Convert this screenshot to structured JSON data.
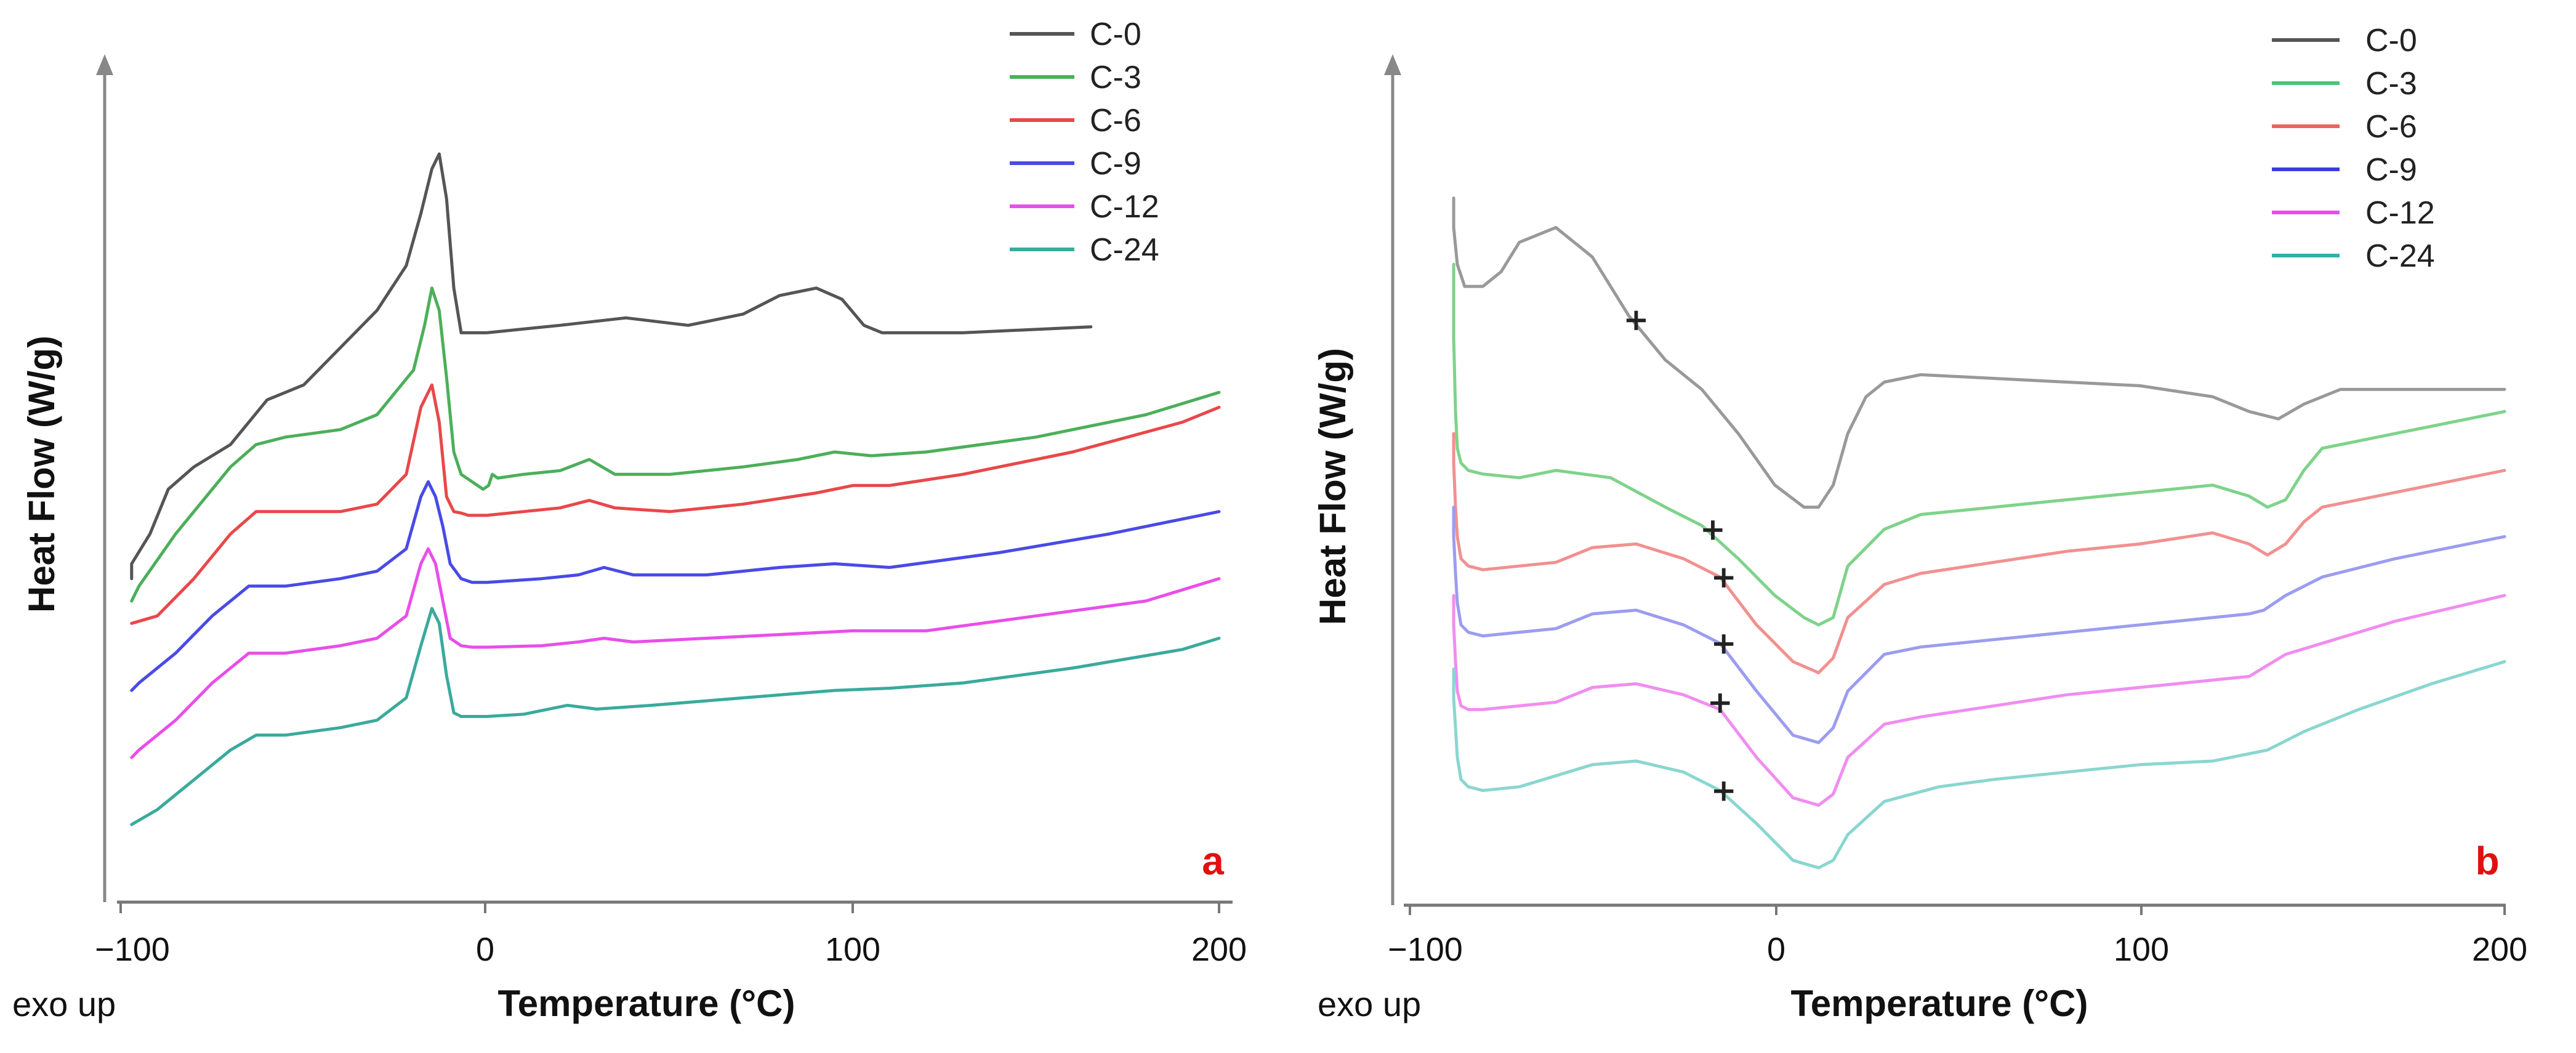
{
  "chart_data": [
    {
      "type": "line",
      "panel_label": "a",
      "xlabel": "Temperature (°C)",
      "ylabel": "Heat Flow (W/g)",
      "y_note": "exo up",
      "xlim": [
        -100,
        200
      ],
      "xticks": [
        -100,
        0,
        100,
        200
      ],
      "x_tick_labels": [
        "−100",
        "0",
        "100",
        "200"
      ],
      "ylim": [
        0,
        100
      ],
      "legend": [
        "C-0",
        "C-3",
        "C-6",
        "C-9",
        "C-12",
        "C-24"
      ],
      "legend_position": "top-right",
      "series": [
        {
          "name": "C-0",
          "color": "#555555",
          "x": [
            -97,
            -97,
            -92,
            -87,
            -80,
            -70,
            -60,
            -50,
            -40,
            -30,
            -22,
            -18,
            -15,
            -13,
            -11,
            -9,
            -7,
            0,
            20,
            38,
            55,
            70,
            80,
            90,
            97,
            103,
            108,
            130,
            165
          ],
          "y": [
            43,
            45,
            49,
            55,
            58,
            61,
            67,
            69,
            74,
            79,
            85,
            92,
            98,
            100,
            94,
            82,
            76,
            76,
            77,
            78,
            77,
            78.5,
            81,
            82,
            80.5,
            77,
            76,
            76,
            76.8
          ]
        },
        {
          "name": "C-3",
          "color": "#4caf5a",
          "x": [
            -97,
            -95,
            -85,
            -75,
            -70,
            -63,
            -55,
            -40,
            -30,
            -20,
            -17,
            -15,
            -13,
            -11,
            -9,
            -7,
            -4,
            -1,
            0.5,
            1.5,
            3,
            10,
            20,
            28,
            35,
            50,
            70,
            85,
            95,
            105,
            120,
            150,
            180,
            200
          ],
          "y": [
            40,
            42,
            49,
            55,
            58,
            61,
            62,
            63,
            65,
            71,
            77,
            82,
            79,
            70,
            60,
            57,
            56,
            55,
            55.5,
            57,
            56.5,
            57,
            57.5,
            59,
            57,
            57,
            58,
            59,
            60,
            59.5,
            60,
            62,
            65,
            68
          ]
        },
        {
          "name": "C-6",
          "color": "#e8484a",
          "x": [
            -97,
            -90,
            -80,
            -70,
            -63,
            -55,
            -40,
            -30,
            -22,
            -18,
            -15,
            -13,
            -11,
            -9,
            -7,
            -5,
            0,
            10,
            20,
            28,
            35,
            50,
            70,
            90,
            100,
            110,
            130,
            160,
            190,
            200
          ],
          "y": [
            37,
            38,
            43,
            49,
            52,
            52,
            52,
            53,
            57,
            66,
            69,
            64,
            54,
            52,
            51.8,
            51.5,
            51.5,
            52,
            52.5,
            53.5,
            52.5,
            52,
            53,
            54.5,
            55.5,
            55.5,
            57,
            60,
            64,
            66
          ]
        },
        {
          "name": "C-9",
          "color": "#4a4ae6",
          "x": [
            -97,
            -95,
            -85,
            -75,
            -65,
            -55,
            -40,
            -30,
            -22,
            -18,
            -16,
            -14,
            -12,
            -10,
            -7,
            -4,
            0,
            15,
            25,
            32,
            40,
            60,
            80,
            95,
            110,
            140,
            170,
            200
          ],
          "y": [
            28,
            29,
            33,
            38,
            42,
            42,
            43,
            44,
            47,
            54,
            56,
            54,
            50,
            45,
            43,
            42.5,
            42.5,
            43,
            43.5,
            44.5,
            43.5,
            43.5,
            44.5,
            45,
            44.5,
            46.5,
            49,
            52
          ]
        },
        {
          "name": "C-12",
          "color": "#e94ee9",
          "x": [
            -97,
            -95,
            -85,
            -75,
            -65,
            -55,
            -40,
            -30,
            -22,
            -18,
            -16,
            -14,
            -12,
            -10,
            -7,
            -4,
            0,
            15,
            25,
            32,
            40,
            60,
            80,
            100,
            120,
            150,
            180,
            200
          ],
          "y": [
            19,
            20,
            24,
            29,
            33,
            33,
            34,
            35,
            38,
            45,
            47,
            45,
            40,
            35,
            34,
            33.8,
            33.8,
            34,
            34.5,
            35,
            34.5,
            35,
            35.5,
            36,
            36,
            38,
            40,
            43
          ]
        },
        {
          "name": "C-24",
          "color": "#3aaa9c",
          "x": [
            -97,
            -90,
            -80,
            -70,
            -63,
            -55,
            -40,
            -30,
            -22,
            -18,
            -15,
            -13,
            -11,
            -9,
            -7,
            -4,
            0,
            10,
            22,
            30,
            45,
            70,
            95,
            110,
            130,
            160,
            190,
            200
          ],
          "y": [
            10,
            12,
            16,
            20,
            22,
            22,
            23,
            24,
            27,
            34,
            39,
            37,
            30,
            25,
            24.5,
            24.5,
            24.5,
            24.8,
            26,
            25.5,
            26,
            27,
            28,
            28.3,
            29,
            31,
            33.5,
            35
          ]
        }
      ]
    },
    {
      "type": "line",
      "panel_label": "b",
      "xlabel": "Temperature (°C)",
      "ylabel": "Heat Flow (W/g)",
      "y_note": "exo up",
      "xlim": [
        -100,
        200
      ],
      "xticks": [
        -100,
        0,
        100,
        200
      ],
      "x_tick_labels": [
        "−100",
        "0",
        "100",
        "200"
      ],
      "ylim": [
        0,
        100
      ],
      "legend": [
        "C-0",
        "C-3",
        "C-6",
        "C-9",
        "C-12",
        "C-24"
      ],
      "legend_position": "top-right",
      "series": [
        {
          "name": "C-0",
          "color": "#999999",
          "x": [
            -88,
            -88,
            -87,
            -85,
            -80,
            -75,
            -70,
            -60,
            -50,
            -40,
            -30,
            -20,
            -10,
            0,
            8,
            12,
            16,
            20,
            25,
            30,
            40,
            60,
            80,
            100,
            120,
            130,
            138,
            145,
            155,
            170,
            200
          ],
          "y": [
            94,
            90,
            85,
            82,
            82,
            84,
            88,
            90,
            86,
            78,
            72,
            68,
            62,
            55,
            52,
            52,
            55,
            62,
            67,
            69,
            70,
            69.5,
            69,
            68.5,
            67,
            65,
            64,
            66,
            68,
            68,
            68
          ]
        },
        {
          "name": "C-3",
          "color": "#7ed38a",
          "x": [
            -88,
            -88,
            -87.5,
            -87,
            -86,
            -84,
            -80,
            -70,
            -60,
            -45,
            -30,
            -20,
            -10,
            0,
            8,
            12,
            16,
            20,
            30,
            40,
            60,
            80,
            100,
            120,
            130,
            135,
            140,
            145,
            150,
            170,
            200
          ],
          "y": [
            85,
            75,
            65,
            60,
            58,
            57,
            56.5,
            56,
            57,
            56,
            52,
            49.5,
            45,
            40,
            37,
            36,
            37,
            44,
            49,
            51,
            52,
            53,
            54,
            55,
            53.5,
            52,
            53,
            57,
            60,
            62,
            65
          ]
        },
        {
          "name": "C-6",
          "color": "#f29090",
          "x": [
            -88,
            -88,
            -87.5,
            -87,
            -86,
            -84,
            -80,
            -70,
            -60,
            -50,
            -38,
            -25,
            -15,
            -5,
            5,
            12,
            16,
            20,
            30,
            40,
            60,
            80,
            100,
            120,
            130,
            135,
            140,
            145,
            150,
            170,
            200
          ],
          "y": [
            62,
            58,
            52,
            48,
            45,
            44,
            43.5,
            44,
            44.5,
            46.5,
            47,
            45,
            42.5,
            36,
            31,
            29.5,
            31.5,
            37,
            41.5,
            43,
            44.5,
            46,
            47,
            48.5,
            47,
            45.5,
            47,
            50,
            52,
            54,
            57
          ]
        },
        {
          "name": "C-9",
          "color": "#9c9cef",
          "x": [
            -88,
            -88,
            -87.5,
            -87,
            -86,
            -84,
            -80,
            -70,
            -60,
            -50,
            -38,
            -25,
            -15,
            -5,
            5,
            12,
            16,
            20,
            30,
            40,
            60,
            80,
            100,
            120,
            130,
            134,
            140,
            150,
            170,
            200
          ],
          "y": [
            52,
            48,
            43,
            39,
            36,
            35,
            34.5,
            35,
            35.5,
            37.5,
            38,
            36,
            33.5,
            27,
            21,
            20,
            22,
            27,
            32,
            33,
            34,
            35,
            36,
            37,
            37.5,
            38,
            40,
            42.5,
            45,
            48
          ]
        },
        {
          "name": "C-12",
          "color": "#f08df0",
          "x": [
            -88,
            -88,
            -87.5,
            -87,
            -86,
            -84,
            -80,
            -70,
            -60,
            -50,
            -38,
            -25,
            -15,
            -5,
            5,
            12,
            16,
            20,
            30,
            40,
            60,
            80,
            100,
            120,
            130,
            135,
            140,
            150,
            170,
            200
          ],
          "y": [
            40,
            36,
            31,
            27,
            25,
            24.5,
            24.5,
            25,
            25.5,
            27.5,
            28,
            26.5,
            24.5,
            18,
            12.5,
            11.5,
            13,
            18,
            22.5,
            23.5,
            25,
            26.5,
            27.5,
            28.5,
            29,
            30.5,
            32,
            33.5,
            36.5,
            40
          ]
        },
        {
          "name": "C-24",
          "color": "#8ad6d0",
          "x": [
            -88,
            -88,
            -87.5,
            -87,
            -86,
            -84,
            -80,
            -70,
            -60,
            -50,
            -38,
            -25,
            -15,
            -5,
            5,
            12,
            16,
            20,
            30,
            45,
            60,
            80,
            100,
            120,
            135,
            145,
            160,
            180,
            200
          ],
          "y": [
            30,
            26,
            22,
            18,
            15,
            14,
            13.5,
            14,
            15.5,
            17,
            17.5,
            16,
            13.5,
            9,
            4,
            3,
            4,
            7.5,
            12,
            14,
            15,
            16,
            17,
            17.5,
            19,
            21.5,
            24.5,
            28,
            31
          ]
        }
      ],
      "tg_marker": "+",
      "markers": [
        {
          "series": "C-0",
          "x": -38,
          "y": 77.5
        },
        {
          "series": "C-3",
          "x": -17,
          "y": 49
        },
        {
          "series": "C-6",
          "x": -14,
          "y": 42.5
        },
        {
          "series": "C-9",
          "x": -14,
          "y": 33.5
        },
        {
          "series": "C-12",
          "x": -15,
          "y": 25.5
        },
        {
          "series": "C-24",
          "x": -14,
          "y": 13.5
        }
      ]
    }
  ]
}
